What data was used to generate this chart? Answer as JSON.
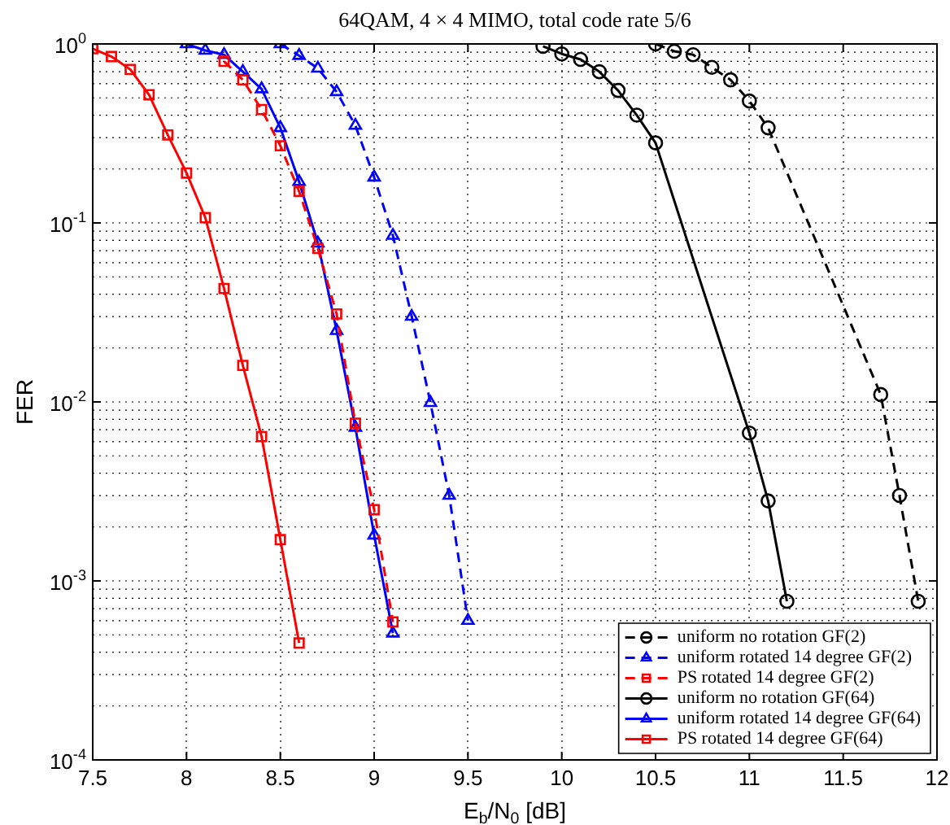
{
  "chart_data": {
    "type": "line",
    "title": "64QAM, 4 × 4 MIMO, total code rate 5/6",
    "xlabel": "E$_{b}$/N$_{0}$ [dB]",
    "ylabel": "FER",
    "log": "y",
    "grid": true,
    "legend": "bottom right",
    "xlim": [
      7.5,
      12
    ],
    "xticks": [
      7.5,
      8,
      8.5,
      9,
      9.5,
      10,
      10.5,
      11,
      11.5,
      12
    ],
    "ylim": [
      0.0001,
      1
    ],
    "yticks": [
      {
        "value": 0.0001,
        "label": "10$^{-4}$"
      },
      {
        "value": 0.001,
        "label": "10$^{-3}$"
      },
      {
        "value": 0.01,
        "label": "10$^{-2}$"
      },
      {
        "value": 0.1,
        "label": "10$^{-1}$"
      },
      {
        "value": 1,
        "label": "10$^{0}$"
      }
    ],
    "series": [
      {
        "name": "uniform no rotation GF(2)",
        "color": "#000000",
        "marker": "circle",
        "line_style": "dashed",
        "x": [
          10.5,
          10.6,
          10.7,
          10.8,
          10.9,
          11.0,
          11.1,
          11.2,
          11.3,
          11.4,
          11.5,
          11.6,
          11.7,
          11.8,
          11.9
        ],
        "values": [
          1.0,
          0.91,
          0.87,
          0.74,
          0.63,
          0.48,
          0.34,
          null,
          null,
          null,
          null,
          null,
          0.011,
          0.003,
          0.00077
        ]
      },
      {
        "name": "uniform rotated 14 degree GF(2)",
        "color": "#0000ff",
        "marker": "triangle",
        "line_style": "dashed",
        "x": [
          8.5,
          8.6,
          8.7,
          8.8,
          8.9,
          9.0,
          9.1,
          9.2,
          9.3,
          9.4,
          9.5
        ],
        "values": [
          1.0,
          0.86,
          0.73,
          0.54,
          0.35,
          0.18,
          0.085,
          0.03,
          0.0099,
          0.003,
          0.0006
        ]
      },
      {
        "name": "PS rotated 14 degree GF(2)",
        "color": "#ff0000",
        "marker": "square",
        "line_style": "dashed",
        "x": [
          8.2,
          8.3,
          8.4,
          8.5,
          8.6,
          8.7,
          8.8,
          8.9,
          9.0,
          9.1
        ],
        "values": [
          0.8,
          0.63,
          0.43,
          0.27,
          0.15,
          0.072,
          0.031,
          0.0076,
          0.0025,
          0.00059
        ]
      },
      {
        "name": "uniform no rotation GF(64)",
        "color": "#000000",
        "marker": "circle",
        "line_style": "solid",
        "x": [
          9.9,
          10.0,
          10.1,
          10.2,
          10.3,
          10.4,
          10.5,
          10.6,
          10.7,
          10.8,
          10.9,
          11.0,
          11.1,
          11.2
        ],
        "values": [
          0.97,
          0.88,
          0.82,
          0.7,
          0.55,
          0.4,
          0.28,
          null,
          null,
          null,
          null,
          0.0067,
          0.0028,
          0.00077
        ]
      },
      {
        "name": "uniform rotated 14 degree GF(64)",
        "color": "#0000ff",
        "marker": "triangle",
        "line_style": "solid",
        "x": [
          8.0,
          8.1,
          8.2,
          8.3,
          8.4,
          8.5,
          8.6,
          8.7,
          8.8,
          8.9,
          9.0,
          9.1
        ],
        "values": [
          1.0,
          0.92,
          0.87,
          0.7,
          0.56,
          0.34,
          0.17,
          0.077,
          0.025,
          0.0072,
          0.0018,
          0.00051
        ]
      },
      {
        "name": "PS rotated 14 degree GF(64)",
        "color": "#ff0000",
        "marker": "square",
        "line_style": "solid",
        "x": [
          7.5,
          7.6,
          7.7,
          7.8,
          7.9,
          8.0,
          8.1,
          8.2,
          8.3,
          8.4,
          8.5,
          8.6
        ],
        "values": [
          0.94,
          0.85,
          0.72,
          0.52,
          0.31,
          0.19,
          0.107,
          0.043,
          0.016,
          0.0064,
          0.0017,
          0.00045
        ]
      }
    ]
  }
}
